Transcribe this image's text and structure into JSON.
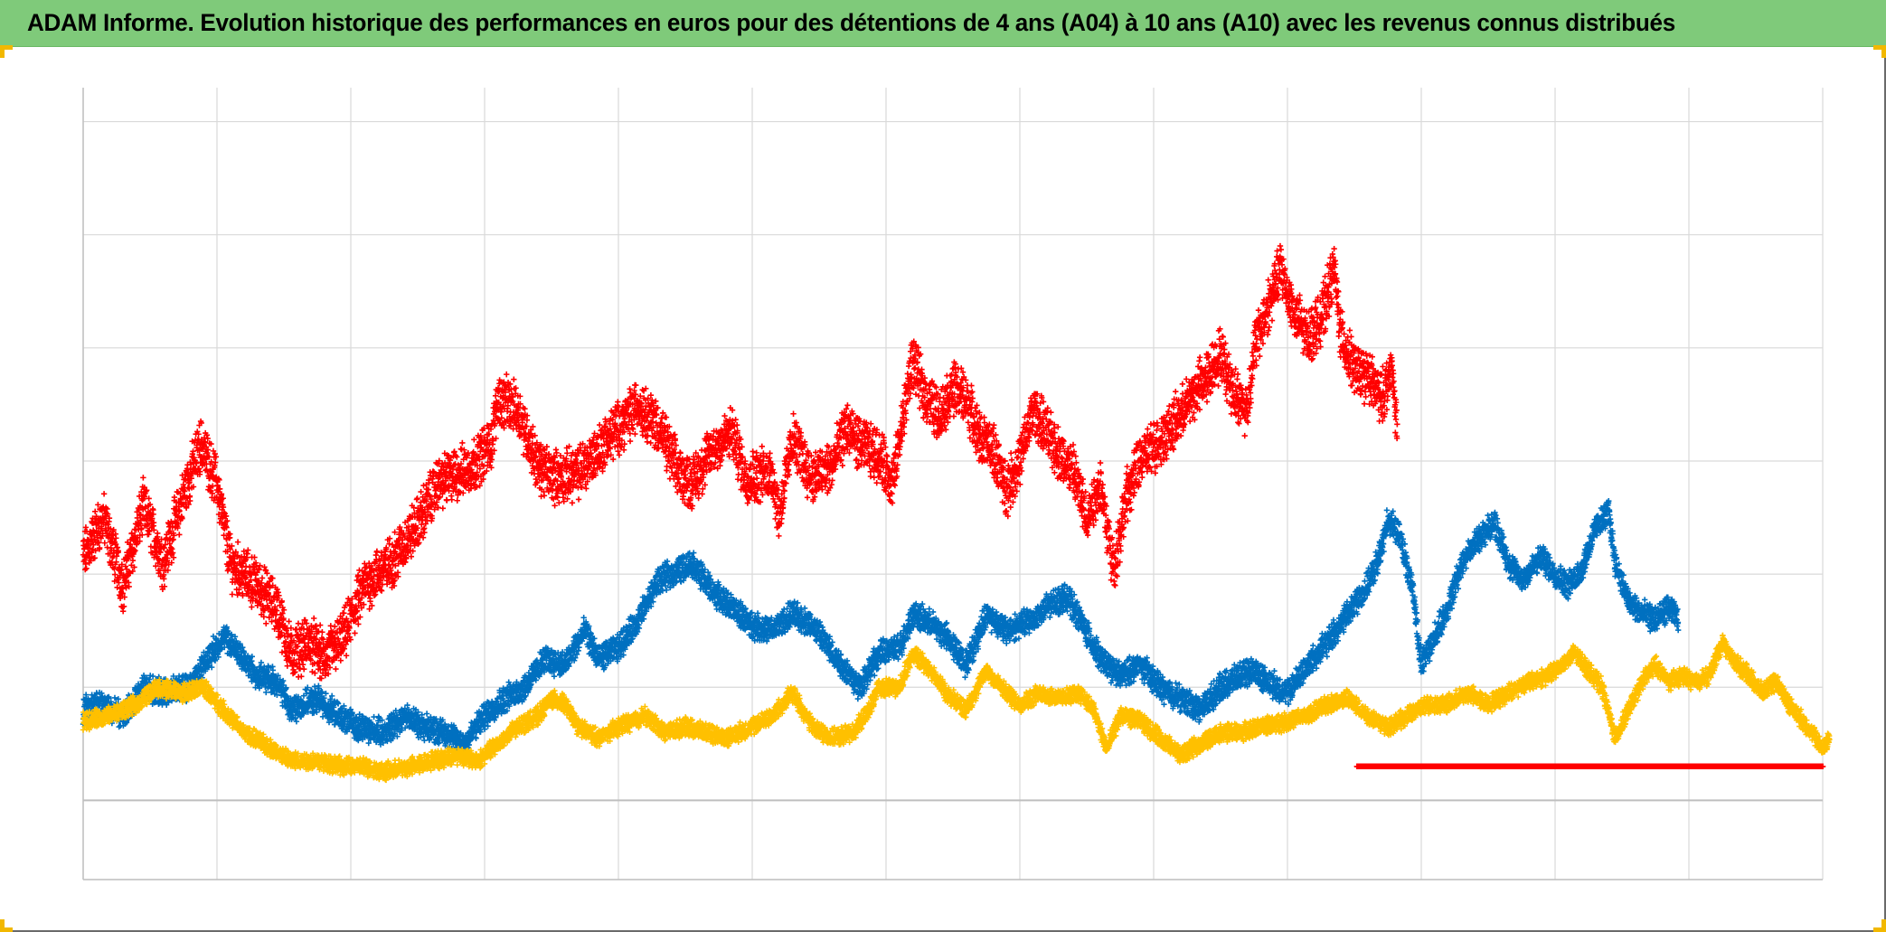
{
  "title": "ADAM Informe. Evolution historique des performances en euros pour des détentions de 4 ans (A04) à 10 ans (A10) avec les revenus connus distribués",
  "colors": {
    "header_bg": "#7fca7a",
    "corner_accent": "#f2b800",
    "grid": "#d9d9d9",
    "axis": "#bfbfbf"
  },
  "chart_data": {
    "type": "scatter",
    "marker": "+",
    "title": "ADAM Informe. Evolution historique des performances en euros pour des détentions de 4 ans (A04) à 10 ans (A10) avec les revenus connus distribués",
    "xlabel": "",
    "ylabel": "",
    "xlim": [
      0,
      13
    ],
    "ylim": [
      -0.7,
      6.3
    ],
    "x_gridlines": 13,
    "y_gridlines": [
      -0.7,
      0,
      1,
      2,
      3,
      4,
      5,
      6
    ],
    "grid": true,
    "legend": "none",
    "series": [
      {
        "name": "red",
        "color": "#ff0000",
        "keypoints": [
          [
            0.0,
            2.15
          ],
          [
            0.15,
            2.5
          ],
          [
            0.3,
            1.9
          ],
          [
            0.45,
            2.6
          ],
          [
            0.6,
            2.1
          ],
          [
            0.75,
            2.7
          ],
          [
            0.88,
            3.15
          ],
          [
            1.0,
            2.8
          ],
          [
            1.1,
            2.1
          ],
          [
            1.3,
            1.9
          ],
          [
            1.45,
            1.7
          ],
          [
            1.55,
            1.3
          ],
          [
            1.7,
            1.4
          ],
          [
            1.8,
            1.25
          ],
          [
            1.95,
            1.45
          ],
          [
            2.1,
            1.9
          ],
          [
            2.3,
            2.1
          ],
          [
            2.5,
            2.45
          ],
          [
            2.65,
            2.8
          ],
          [
            2.9,
            2.95
          ],
          [
            3.05,
            3.15
          ],
          [
            3.1,
            3.55
          ],
          [
            3.25,
            3.45
          ],
          [
            3.4,
            2.95
          ],
          [
            3.55,
            2.85
          ],
          [
            3.7,
            2.9
          ],
          [
            3.85,
            3.1
          ],
          [
            4.0,
            3.3
          ],
          [
            4.15,
            3.5
          ],
          [
            4.3,
            3.3
          ],
          [
            4.45,
            2.9
          ],
          [
            4.55,
            2.8
          ],
          [
            4.7,
            3.1
          ],
          [
            4.85,
            3.25
          ],
          [
            4.95,
            2.85
          ],
          [
            5.15,
            2.9
          ],
          [
            5.2,
            2.5
          ],
          [
            5.3,
            3.2
          ],
          [
            5.45,
            2.85
          ],
          [
            5.6,
            2.95
          ],
          [
            5.7,
            3.3
          ],
          [
            5.8,
            3.15
          ],
          [
            5.95,
            3.05
          ],
          [
            6.05,
            2.8
          ],
          [
            6.15,
            3.55
          ],
          [
            6.2,
            3.9
          ],
          [
            6.28,
            3.6
          ],
          [
            6.4,
            3.4
          ],
          [
            6.5,
            3.65
          ],
          [
            6.6,
            3.55
          ],
          [
            6.7,
            3.2
          ],
          [
            6.8,
            3.1
          ],
          [
            6.9,
            2.75
          ],
          [
            7.0,
            3.0
          ],
          [
            7.1,
            3.45
          ],
          [
            7.2,
            3.25
          ],
          [
            7.3,
            3.05
          ],
          [
            7.4,
            2.9
          ],
          [
            7.5,
            2.5
          ],
          [
            7.6,
            2.8
          ],
          [
            7.7,
            2.05
          ],
          [
            7.8,
            2.7
          ],
          [
            7.9,
            3.0
          ],
          [
            8.1,
            3.25
          ],
          [
            8.2,
            3.4
          ],
          [
            8.3,
            3.6
          ],
          [
            8.4,
            3.75
          ],
          [
            8.5,
            3.95
          ],
          [
            8.6,
            3.6
          ],
          [
            8.7,
            3.45
          ],
          [
            8.75,
            4.0
          ],
          [
            8.85,
            4.35
          ],
          [
            8.95,
            4.7
          ],
          [
            9.05,
            4.3
          ],
          [
            9.15,
            4.1
          ],
          [
            9.25,
            4.25
          ],
          [
            9.35,
            4.7
          ],
          [
            9.4,
            4.1
          ],
          [
            9.5,
            3.8
          ],
          [
            9.6,
            3.75
          ],
          [
            9.7,
            3.55
          ],
          [
            9.78,
            3.8
          ],
          [
            9.82,
            3.3
          ]
        ],
        "jitter": 0.18,
        "density": 55
      },
      {
        "name": "blue",
        "color": "#0070c0",
        "keypoints": [
          [
            0.0,
            0.8
          ],
          [
            0.15,
            0.85
          ],
          [
            0.3,
            0.75
          ],
          [
            0.45,
            1.0
          ],
          [
            0.6,
            0.95
          ],
          [
            0.8,
            1.0
          ],
          [
            0.9,
            1.2
          ],
          [
            1.05,
            1.45
          ],
          [
            1.2,
            1.25
          ],
          [
            1.3,
            1.1
          ],
          [
            1.45,
            1.05
          ],
          [
            1.55,
            0.8
          ],
          [
            1.75,
            0.9
          ],
          [
            1.9,
            0.75
          ],
          [
            2.05,
            0.65
          ],
          [
            2.25,
            0.6
          ],
          [
            2.4,
            0.75
          ],
          [
            2.55,
            0.65
          ],
          [
            2.7,
            0.6
          ],
          [
            2.85,
            0.5
          ],
          [
            3.0,
            0.75
          ],
          [
            3.15,
            0.9
          ],
          [
            3.3,
            1.0
          ],
          [
            3.45,
            1.25
          ],
          [
            3.6,
            1.2
          ],
          [
            3.75,
            1.5
          ],
          [
            3.85,
            1.25
          ],
          [
            4.0,
            1.35
          ],
          [
            4.15,
            1.6
          ],
          [
            4.3,
            1.95
          ],
          [
            4.4,
            2.0
          ],
          [
            4.55,
            2.1
          ],
          [
            4.7,
            1.85
          ],
          [
            4.85,
            1.7
          ],
          [
            5.0,
            1.55
          ],
          [
            5.15,
            1.5
          ],
          [
            5.3,
            1.65
          ],
          [
            5.45,
            1.55
          ],
          [
            5.6,
            1.3
          ],
          [
            5.8,
            1.0
          ],
          [
            5.95,
            1.3
          ],
          [
            6.1,
            1.35
          ],
          [
            6.2,
            1.65
          ],
          [
            6.35,
            1.55
          ],
          [
            6.45,
            1.45
          ],
          [
            6.6,
            1.2
          ],
          [
            6.75,
            1.65
          ],
          [
            6.9,
            1.5
          ],
          [
            7.0,
            1.55
          ],
          [
            7.1,
            1.6
          ],
          [
            7.25,
            1.75
          ],
          [
            7.35,
            1.8
          ],
          [
            7.45,
            1.6
          ],
          [
            7.6,
            1.25
          ],
          [
            7.75,
            1.1
          ],
          [
            7.9,
            1.2
          ],
          [
            8.05,
            1.0
          ],
          [
            8.2,
            0.9
          ],
          [
            8.35,
            0.8
          ],
          [
            8.5,
            1.0
          ],
          [
            8.65,
            1.1
          ],
          [
            8.75,
            1.15
          ],
          [
            8.85,
            1.05
          ],
          [
            9.0,
            0.95
          ],
          [
            9.15,
            1.2
          ],
          [
            9.3,
            1.4
          ],
          [
            9.45,
            1.65
          ],
          [
            9.6,
            1.9
          ],
          [
            9.7,
            2.2
          ],
          [
            9.75,
            2.5
          ],
          [
            9.85,
            2.3
          ],
          [
            9.95,
            1.75
          ],
          [
            10.0,
            1.2
          ],
          [
            10.1,
            1.45
          ],
          [
            10.2,
            1.7
          ],
          [
            10.3,
            2.1
          ],
          [
            10.45,
            2.35
          ],
          [
            10.55,
            2.45
          ],
          [
            10.65,
            2.1
          ],
          [
            10.75,
            1.95
          ],
          [
            10.9,
            2.15
          ],
          [
            11.0,
            2.0
          ],
          [
            11.1,
            1.9
          ],
          [
            11.2,
            2.05
          ],
          [
            11.3,
            2.4
          ],
          [
            11.4,
            2.55
          ],
          [
            11.45,
            2.1
          ],
          [
            11.55,
            1.75
          ],
          [
            11.65,
            1.65
          ],
          [
            11.75,
            1.6
          ],
          [
            11.85,
            1.7
          ],
          [
            11.92,
            1.6
          ]
        ],
        "jitter": 0.09,
        "density": 55
      },
      {
        "name": "yellow",
        "color": "#ffc000",
        "keypoints": [
          [
            0.0,
            0.7
          ],
          [
            0.2,
            0.75
          ],
          [
            0.4,
            0.85
          ],
          [
            0.55,
            1.0
          ],
          [
            0.75,
            0.95
          ],
          [
            0.9,
            1.0
          ],
          [
            1.05,
            0.8
          ],
          [
            1.2,
            0.6
          ],
          [
            1.35,
            0.5
          ],
          [
            1.55,
            0.35
          ],
          [
            1.75,
            0.35
          ],
          [
            1.95,
            0.3
          ],
          [
            2.1,
            0.3
          ],
          [
            2.25,
            0.25
          ],
          [
            2.45,
            0.3
          ],
          [
            2.6,
            0.35
          ],
          [
            2.8,
            0.4
          ],
          [
            2.95,
            0.35
          ],
          [
            3.1,
            0.5
          ],
          [
            3.25,
            0.65
          ],
          [
            3.4,
            0.75
          ],
          [
            3.5,
            0.9
          ],
          [
            3.6,
            0.85
          ],
          [
            3.7,
            0.65
          ],
          [
            3.85,
            0.55
          ],
          [
            4.0,
            0.65
          ],
          [
            4.2,
            0.75
          ],
          [
            4.35,
            0.6
          ],
          [
            4.5,
            0.65
          ],
          [
            4.65,
            0.6
          ],
          [
            4.8,
            0.55
          ],
          [
            5.0,
            0.65
          ],
          [
            5.15,
            0.75
          ],
          [
            5.3,
            0.95
          ],
          [
            5.45,
            0.65
          ],
          [
            5.6,
            0.55
          ],
          [
            5.75,
            0.6
          ],
          [
            5.85,
            0.75
          ],
          [
            5.95,
            1.0
          ],
          [
            6.1,
            1.0
          ],
          [
            6.2,
            1.3
          ],
          [
            6.3,
            1.2
          ],
          [
            6.45,
            0.95
          ],
          [
            6.6,
            0.8
          ],
          [
            6.75,
            1.15
          ],
          [
            6.9,
            0.95
          ],
          [
            7.0,
            0.85
          ],
          [
            7.15,
            0.95
          ],
          [
            7.3,
            0.9
          ],
          [
            7.45,
            0.95
          ],
          [
            7.55,
            0.8
          ],
          [
            7.65,
            0.45
          ],
          [
            7.75,
            0.75
          ],
          [
            7.9,
            0.7
          ],
          [
            8.05,
            0.55
          ],
          [
            8.2,
            0.4
          ],
          [
            8.35,
            0.5
          ],
          [
            8.5,
            0.6
          ],
          [
            8.65,
            0.6
          ],
          [
            8.8,
            0.65
          ],
          [
            9.0,
            0.7
          ],
          [
            9.15,
            0.75
          ],
          [
            9.3,
            0.85
          ],
          [
            9.45,
            0.9
          ],
          [
            9.6,
            0.75
          ],
          [
            9.75,
            0.65
          ],
          [
            9.9,
            0.75
          ],
          [
            10.05,
            0.85
          ],
          [
            10.2,
            0.85
          ],
          [
            10.35,
            0.95
          ],
          [
            10.5,
            0.85
          ],
          [
            10.65,
            0.95
          ],
          [
            10.8,
            1.05
          ],
          [
            10.95,
            1.1
          ],
          [
            11.05,
            1.2
          ],
          [
            11.15,
            1.3
          ],
          [
            11.25,
            1.15
          ],
          [
            11.35,
            1.0
          ],
          [
            11.45,
            0.55
          ],
          [
            11.55,
            0.8
          ],
          [
            11.65,
            1.05
          ],
          [
            11.75,
            1.2
          ],
          [
            11.85,
            1.05
          ],
          [
            11.95,
            1.1
          ],
          [
            12.05,
            1.05
          ],
          [
            12.15,
            1.1
          ],
          [
            12.25,
            1.4
          ],
          [
            12.32,
            1.25
          ],
          [
            12.45,
            1.1
          ],
          [
            12.55,
            0.95
          ],
          [
            12.65,
            1.05
          ],
          [
            12.75,
            0.85
          ],
          [
            12.85,
            0.7
          ],
          [
            12.95,
            0.55
          ],
          [
            13.0,
            0.45
          ],
          [
            13.05,
            0.55
          ]
        ],
        "jitter": 0.06,
        "density": 55
      },
      {
        "name": "red-flat",
        "color": "#ff0000",
        "keypoints": [
          [
            9.52,
            0.3
          ],
          [
            13.0,
            0.3
          ]
        ],
        "jitter": 0.0,
        "density": 160
      }
    ]
  }
}
